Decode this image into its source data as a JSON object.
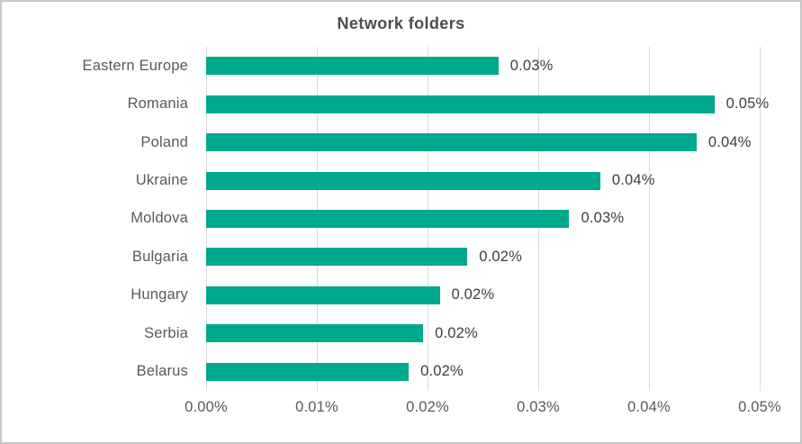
{
  "title": "Network folders",
  "colors": {
    "bar": "#00a88e",
    "gridline": "#d9d9d9",
    "title_text": "#4d4d4d",
    "category_text": "#595959",
    "value_text": "#3f3f3f",
    "frame_border": "#c8c8c8",
    "background": "#ffffff"
  },
  "chart_data": {
    "type": "bar",
    "orientation": "horizontal",
    "title": "Network folders",
    "categories": [
      "Eastern Europe",
      "Romania",
      "Poland",
      "Ukraine",
      "Moldova",
      "Bulgaria",
      "Hungary",
      "Serbia",
      "Belarus"
    ],
    "values": [
      0.0264,
      0.0459,
      0.0443,
      0.0356,
      0.0328,
      0.0236,
      0.0211,
      0.0196,
      0.0183
    ],
    "data_labels": [
      "0.03%",
      "0.05%",
      "0.04%",
      "0.04%",
      "0.03%",
      "0.02%",
      "0.02%",
      "0.02%",
      "0.02%"
    ],
    "xlabel": "",
    "ylabel": "",
    "xlim": [
      0,
      0.05
    ],
    "x_tick_labels": [
      "0.00%",
      "0.01%",
      "0.02%",
      "0.03%",
      "0.04%",
      "0.05%"
    ],
    "grid": true,
    "legend": false,
    "bar_color": "#00a88e"
  }
}
